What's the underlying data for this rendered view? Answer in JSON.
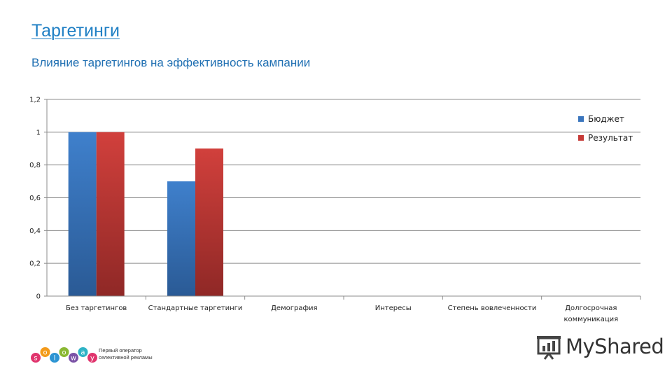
{
  "slide": {
    "title": "Таргетинги",
    "subtitle": "Влияние таргетингов на эффективность кампании"
  },
  "chart_data": {
    "type": "bar",
    "categories": [
      "Без таргетингов",
      "Стандартные таргетинги",
      "Демография",
      "Интересы",
      "Степень вовлеченности",
      "Долгосрочная коммуникация"
    ],
    "category_lines": [
      [
        "Без таргетингов"
      ],
      [
        "Стандартные таргетинги"
      ],
      [
        "Демография"
      ],
      [
        "Интересы"
      ],
      [
        "Степень вовлеченности"
      ],
      [
        "Долгосрочная",
        "коммуникация"
      ]
    ],
    "series": [
      {
        "name": "Бюджет",
        "values": [
          1,
          0.7,
          null,
          null,
          null,
          null
        ],
        "color": "#3a75bd"
      },
      {
        "name": "Результат",
        "values": [
          1,
          0.9,
          null,
          null,
          null,
          null
        ],
        "color": "#c63a37"
      }
    ],
    "ylim": [
      0,
      1.2
    ],
    "yticks": [
      "0",
      "0,2",
      "0,4",
      "0,6",
      "0,8",
      "1",
      "1,2"
    ],
    "grid": true,
    "legend": "top-right"
  },
  "footer": {
    "logo_letters": [
      "s",
      "o",
      "l",
      "o",
      "w",
      "a",
      "y"
    ],
    "logo_colors": [
      "#e0346d",
      "#f39a1b",
      "#2c95d3",
      "#8ab833",
      "#7b52a6",
      "#2eb3c6",
      "#e0346d"
    ],
    "tagline_line1": "Первый оператор",
    "tagline_line2": "селективной рекламы",
    "watermark": "MyShared"
  }
}
